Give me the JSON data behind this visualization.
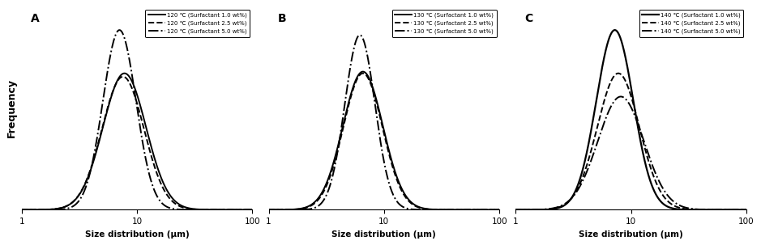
{
  "panels": [
    {
      "label": "A",
      "temp": 120,
      "curves": [
        {
          "conc": 1.0,
          "linestyle": "solid",
          "lw": 1.4,
          "mu": 2.05,
          "sigma": 0.43,
          "amp": 0.82
        },
        {
          "conc": 2.5,
          "linestyle": "dashed",
          "lw": 1.4,
          "mu": 2.02,
          "sigma": 0.42,
          "amp": 0.8
        },
        {
          "conc": 5.0,
          "linestyle": "dashdot",
          "lw": 1.4,
          "mu": 1.95,
          "sigma": 0.33,
          "amp": 1.08
        }
      ]
    },
    {
      "label": "B",
      "temp": 130,
      "curves": [
        {
          "conc": 1.0,
          "linestyle": "solid",
          "lw": 1.4,
          "mu": 1.88,
          "sigma": 0.4,
          "amp": 0.83
        },
        {
          "conc": 2.5,
          "linestyle": "dashed",
          "lw": 1.4,
          "mu": 1.88,
          "sigma": 0.39,
          "amp": 0.82
        },
        {
          "conc": 5.0,
          "linestyle": "dashdot",
          "lw": 1.4,
          "mu": 1.82,
          "sigma": 0.3,
          "amp": 1.05
        }
      ]
    },
    {
      "label": "C",
      "temp": 140,
      "curves": [
        {
          "conc": 1.0,
          "linestyle": "solid",
          "lw": 1.6,
          "mu": 1.98,
          "sigma": 0.37,
          "amp": 1.08
        },
        {
          "conc": 2.5,
          "linestyle": "dashed",
          "lw": 1.4,
          "mu": 2.05,
          "sigma": 0.42,
          "amp": 0.82
        },
        {
          "conc": 5.0,
          "linestyle": "dashdot",
          "lw": 1.4,
          "mu": 2.1,
          "sigma": 0.46,
          "amp": 0.68
        }
      ]
    }
  ],
  "xlim": [
    1,
    100
  ],
  "xticks": [
    1,
    10,
    100
  ],
  "xticklabels": [
    "1",
    "10",
    "100"
  ],
  "ylabel": "Frequency",
  "xlabel": "Size distribution (μm)",
  "color": "black",
  "background": "white"
}
